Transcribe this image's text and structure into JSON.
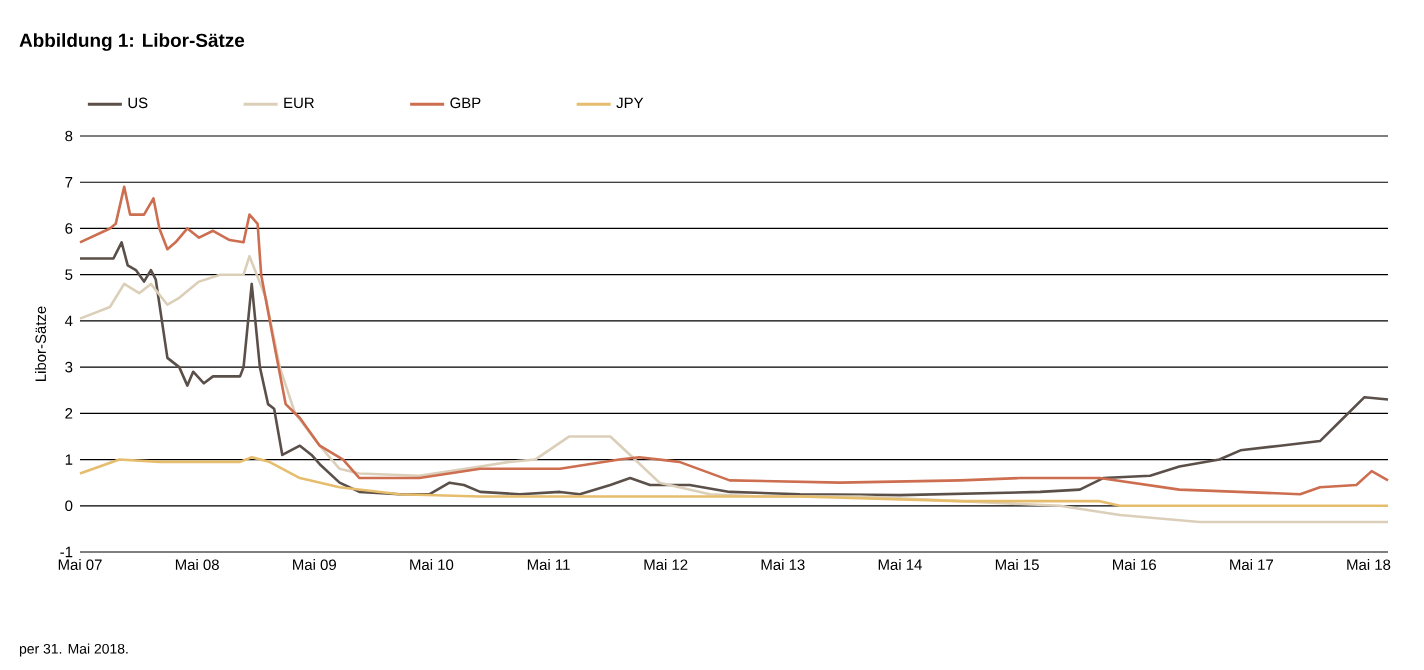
{
  "chart_data": {
    "type": "line",
    "title": "Abbildung 1: Libor-Sätze",
    "ylabel": "Libor-Sätze",
    "annotations": [
      "per 31. Mai 2018."
    ],
    "xlim": [
      "2007-05-01",
      "2018-07-01"
    ],
    "xticks": [
      {
        "value": "2007-05",
        "label": "Mai 07"
      },
      {
        "value": "2008-05",
        "label": "Mai 08"
      },
      {
        "value": "2009-05",
        "label": "Mai 09"
      },
      {
        "value": "2010-05",
        "label": "Mai 10"
      },
      {
        "value": "2011-05",
        "label": "Mai 11"
      },
      {
        "value": "2012-05",
        "label": "Mai 12"
      },
      {
        "value": "2013-05",
        "label": "Mai 13"
      },
      {
        "value": "2014-05",
        "label": "Mai 14"
      },
      {
        "value": "2015-05",
        "label": "Mai 15"
      },
      {
        "value": "2016-05",
        "label": "Mai 16"
      },
      {
        "value": "2017-05",
        "label": "Mai 17"
      },
      {
        "value": "2018-05",
        "label": "Mai 18"
      }
    ],
    "ylim": [
      -1,
      8
    ],
    "yticks": [
      -1,
      0,
      1,
      2,
      3,
      4,
      5,
      6,
      7,
      8
    ],
    "grid": "y",
    "legend": "top",
    "marker": "none",
    "line_style": "solid",
    "series": [
      {
        "name": "US",
        "color": "#5b4f4a",
        "x": [
          "2007-05-01",
          "2007-08-14",
          "2007-09-09",
          "2007-09-28",
          "2007-10-23",
          "2007-11-18",
          "2007-12-09",
          "2007-12-24",
          "2008-01-30",
          "2008-03-06",
          "2008-04-01",
          "2008-04-19",
          "2008-05-22",
          "2008-06-20",
          "2008-09-13",
          "2008-09-24",
          "2008-10-19",
          "2008-11-14",
          "2008-12-09",
          "2008-12-28",
          "2009-01-23",
          "2009-03-17",
          "2009-04-23",
          "2009-05-18",
          "2009-07-19",
          "2009-09-20",
          "2010-01-23",
          "2010-04-26",
          "2010-06-27",
          "2010-08-11",
          "2010-10-01",
          "2011-02-03",
          "2011-06-06",
          "2011-08-07",
          "2011-11-11",
          "2012-01-12",
          "2012-03-13",
          "2012-07-15",
          "2012-11-18",
          "2013-06-24",
          "2014-05-01",
          "2015-07-12",
          "2015-11-14",
          "2016-01-26",
          "2016-06-20",
          "2016-09-20",
          "2017-01-23",
          "2017-03-28",
          "2017-07-30",
          "2017-12-02",
          "2018-02-14",
          "2018-04-19",
          "2018-07-01"
        ],
        "values": [
          5.35,
          5.35,
          5.7,
          5.2,
          5.1,
          4.85,
          5.1,
          4.9,
          3.2,
          3.0,
          2.6,
          2.9,
          2.65,
          2.8,
          2.8,
          3.0,
          4.8,
          3.0,
          2.2,
          2.1,
          1.1,
          1.3,
          1.1,
          0.9,
          0.5,
          0.3,
          0.25,
          0.25,
          0.5,
          0.45,
          0.3,
          0.25,
          0.3,
          0.25,
          0.45,
          0.6,
          0.45,
          0.45,
          0.3,
          0.25,
          0.23,
          0.3,
          0.35,
          0.6,
          0.65,
          0.85,
          1.0,
          1.2,
          1.3,
          1.4,
          1.9,
          2.35,
          2.3
        ]
      },
      {
        "name": "EUR",
        "color": "#dccfb9",
        "x": [
          "2007-05-01",
          "2007-08-03",
          "2007-09-17",
          "2007-11-03",
          "2007-12-09",
          "2008-01-30",
          "2008-03-06",
          "2008-05-07",
          "2008-07-12",
          "2008-09-24",
          "2008-10-12",
          "2008-12-02",
          "2009-01-15",
          "2009-03-02",
          "2009-05-18",
          "2009-07-19",
          "2009-09-20",
          "2010-03-24",
          "2010-10-01",
          "2011-01-01",
          "2011-03-20",
          "2011-07-05",
          "2011-11-11",
          "2012-01-12",
          "2012-04-12",
          "2012-09-17",
          "2013-02-21",
          "2013-12-28",
          "2014-11-07",
          "2015-09-13",
          "2016-03-17",
          "2016-11-22",
          "2018-07-01"
        ],
        "values": [
          4.05,
          4.3,
          4.8,
          4.6,
          4.8,
          4.35,
          4.5,
          4.85,
          5.0,
          5.0,
          5.4,
          4.5,
          3.0,
          2.0,
          1.3,
          0.8,
          0.7,
          0.65,
          0.85,
          0.95,
          1.0,
          1.5,
          1.5,
          1.1,
          0.5,
          0.25,
          0.2,
          0.2,
          0.1,
          0.0,
          -0.2,
          -0.35,
          -0.35
        ]
      },
      {
        "name": "GBP",
        "color": "#cc6e4f",
        "x": [
          "2007-05-01",
          "2007-08-03",
          "2007-08-21",
          "2007-09-17",
          "2007-10-05",
          "2007-11-18",
          "2007-12-17",
          "2008-01-05",
          "2008-01-30",
          "2008-02-25",
          "2008-04-01",
          "2008-05-07",
          "2008-06-20",
          "2008-08-11",
          "2008-09-24",
          "2008-10-12",
          "2008-11-07",
          "2008-11-18",
          "2008-12-28",
          "2009-02-03",
          "2009-03-17",
          "2009-05-18",
          "2009-07-30",
          "2009-09-20",
          "2010-03-24",
          "2010-10-01",
          "2011-06-06",
          "2011-12-09",
          "2012-02-10",
          "2012-06-13",
          "2012-11-18",
          "2013-10-27",
          "2014-11-07",
          "2015-05-11",
          "2016-01-15",
          "2016-09-20",
          "2017-10-01",
          "2017-12-02",
          "2018-03-24",
          "2018-05-11",
          "2018-07-01"
        ],
        "values": [
          5.7,
          6.0,
          6.1,
          6.9,
          6.3,
          6.3,
          6.65,
          6.0,
          5.55,
          5.7,
          6.0,
          5.8,
          5.95,
          5.75,
          5.7,
          6.3,
          6.1,
          5.0,
          3.5,
          2.2,
          1.9,
          1.3,
          1.0,
          0.6,
          0.6,
          0.8,
          0.8,
          1.0,
          1.05,
          0.95,
          0.55,
          0.5,
          0.55,
          0.6,
          0.6,
          0.35,
          0.25,
          0.4,
          0.45,
          0.75,
          0.55
        ]
      },
      {
        "name": "JPY",
        "color": "#e6bd6d",
        "x": [
          "2007-05-01",
          "2007-09-02",
          "2008-01-05",
          "2008-09-13",
          "2008-10-19",
          "2008-12-13",
          "2009-03-17",
          "2009-07-19",
          "2010-01-23",
          "2010-10-01",
          "2011-10-08",
          "2012-06-13",
          "2013-06-24",
          "2014-11-07",
          "2016-01-15",
          "2016-03-17",
          "2018-07-01"
        ],
        "values": [
          0.7,
          1.0,
          0.95,
          0.95,
          1.05,
          0.95,
          0.6,
          0.4,
          0.25,
          0.2,
          0.2,
          0.2,
          0.2,
          0.1,
          0.1,
          0.0,
          0.0
        ]
      }
    ]
  }
}
